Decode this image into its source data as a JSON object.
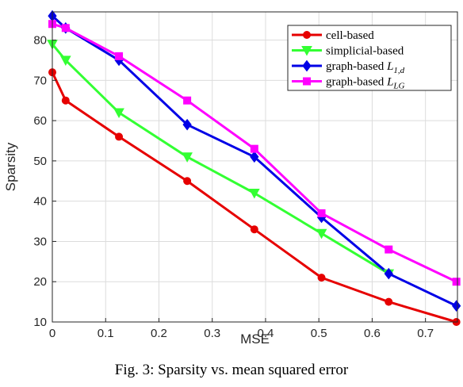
{
  "chart_data": {
    "type": "line",
    "xlabel": "MSE",
    "ylabel": "Sparsity",
    "xlim": [
      0,
      0.76
    ],
    "ylim": [
      10,
      87
    ],
    "xticks": [
      0,
      0.1,
      0.2,
      0.3,
      0.4,
      0.5,
      0.6,
      0.7
    ],
    "xtick_labels": [
      "0",
      "0.1",
      "0.2",
      "0.3",
      "0.4",
      "0.5",
      "0.6",
      "0.7"
    ],
    "yticks": [
      10,
      20,
      30,
      40,
      50,
      60,
      70,
      80
    ],
    "ytick_labels": [
      "10",
      "20",
      "30",
      "40",
      "50",
      "60",
      "70",
      "80"
    ],
    "grid": true,
    "legend_position": "top-right",
    "series": [
      {
        "name": "cell-based",
        "legend_main": "cell-based",
        "legend_math": "",
        "legend_sub": "",
        "color": "#e60000",
        "marker": "circle",
        "x": [
          0,
          0.025,
          0.125,
          0.253,
          0.379,
          0.505,
          0.631,
          0.758
        ],
        "y": [
          72,
          65,
          56,
          45,
          33,
          21,
          15,
          10
        ]
      },
      {
        "name": "simplicial-based",
        "legend_main": "simplicial-based",
        "legend_math": "",
        "legend_sub": "",
        "color": "#33ff33",
        "marker": "triangle-down",
        "x": [
          0,
          0.025,
          0.125,
          0.253,
          0.379,
          0.505,
          0.631
        ],
        "y": [
          79,
          75,
          62,
          51,
          42,
          32,
          22
        ]
      },
      {
        "name": "graph-based L1,d",
        "legend_main": "graph-based ",
        "legend_math": "L",
        "legend_sub": "1,d",
        "color": "#0000e6",
        "marker": "diamond",
        "x": [
          0,
          0.025,
          0.125,
          0.253,
          0.379,
          0.505,
          0.631,
          0.758
        ],
        "y": [
          86,
          83,
          75,
          59,
          51,
          36,
          22,
          14
        ]
      },
      {
        "name": "graph-based LLG",
        "legend_main": "graph-based ",
        "legend_math": "L",
        "legend_sub": "LG",
        "color": "#ff00ff",
        "marker": "square",
        "x": [
          0,
          0.025,
          0.125,
          0.253,
          0.379,
          0.505,
          0.631,
          0.758
        ],
        "y": [
          84,
          83,
          76,
          65,
          53,
          37,
          28,
          20
        ]
      }
    ]
  },
  "caption": "Fig. 3: Sparsity vs. mean squared error"
}
